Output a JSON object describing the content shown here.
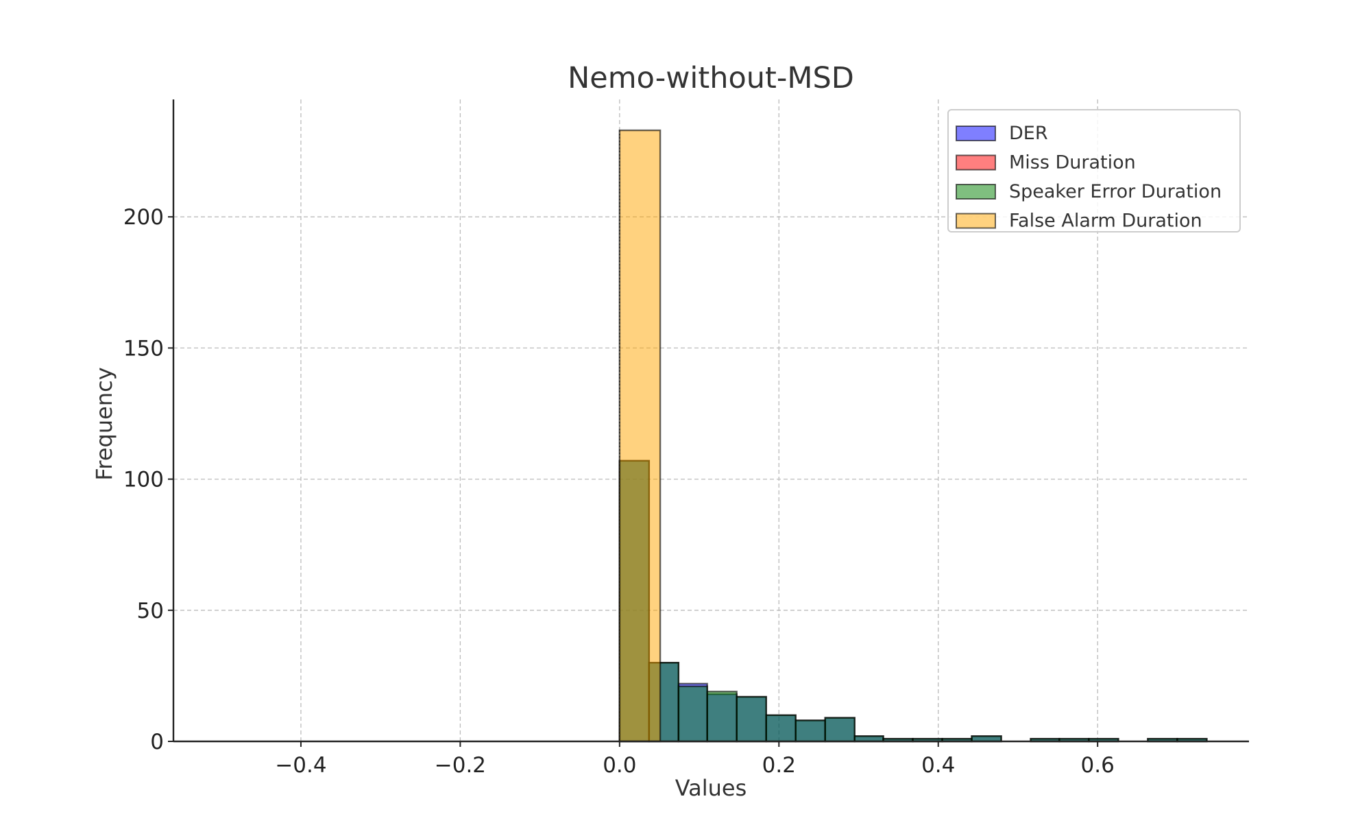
{
  "chart_data": {
    "type": "histogram",
    "title": "Nemo-without-MSD",
    "xlabel": "Values",
    "ylabel": "Frequency",
    "xlim": [
      -0.56,
      0.79
    ],
    "ylim": [
      0,
      233
    ],
    "xticks": [
      -0.4,
      -0.2,
      0.0,
      0.2,
      0.4,
      0.6
    ],
    "xtick_labels": [
      "−0.4",
      "−0.2",
      "0.0",
      "0.2",
      "0.4",
      "0.6"
    ],
    "yticks": [
      0,
      50,
      100,
      150,
      200
    ],
    "ytick_labels": [
      "0",
      "50",
      "100",
      "150",
      "200"
    ],
    "grid": true,
    "legend_position": "upper-right",
    "series": [
      {
        "name": "DER",
        "color": "#0000ff",
        "alpha": 0.5,
        "bins": [
          [
            0.0,
            0.037,
            107
          ],
          [
            0.037,
            0.074,
            30
          ],
          [
            0.074,
            0.11,
            22
          ],
          [
            0.11,
            0.147,
            18
          ],
          [
            0.147,
            0.184,
            17
          ],
          [
            0.184,
            0.221,
            10
          ],
          [
            0.221,
            0.258,
            8
          ],
          [
            0.258,
            0.295,
            9
          ],
          [
            0.295,
            0.331,
            2
          ],
          [
            0.331,
            0.368,
            1
          ],
          [
            0.368,
            0.405,
            1
          ],
          [
            0.405,
            0.442,
            1
          ],
          [
            0.442,
            0.479,
            2
          ],
          [
            0.516,
            0.552,
            1
          ],
          [
            0.552,
            0.589,
            1
          ],
          [
            0.589,
            0.626,
            1
          ],
          [
            0.663,
            0.7,
            1
          ],
          [
            0.7,
            0.737,
            1
          ]
        ]
      },
      {
        "name": "Miss Duration",
        "color": "#ff0000",
        "alpha": 0.5,
        "bins": [
          [
            0.0,
            0.0,
            233
          ]
        ]
      },
      {
        "name": "Speaker Error Duration",
        "color": "#008000",
        "alpha": 0.5,
        "bins": [
          [
            0.0,
            0.037,
            107
          ],
          [
            0.037,
            0.074,
            30
          ],
          [
            0.074,
            0.11,
            21
          ],
          [
            0.11,
            0.147,
            19
          ],
          [
            0.147,
            0.184,
            17
          ],
          [
            0.184,
            0.221,
            10
          ],
          [
            0.221,
            0.258,
            8
          ],
          [
            0.258,
            0.295,
            9
          ],
          [
            0.295,
            0.331,
            2
          ],
          [
            0.331,
            0.368,
            1
          ],
          [
            0.368,
            0.405,
            1
          ],
          [
            0.405,
            0.442,
            1
          ],
          [
            0.442,
            0.479,
            2
          ],
          [
            0.516,
            0.552,
            1
          ],
          [
            0.552,
            0.589,
            1
          ],
          [
            0.589,
            0.626,
            1
          ],
          [
            0.663,
            0.7,
            1
          ],
          [
            0.7,
            0.737,
            1
          ]
        ]
      },
      {
        "name": "False Alarm Duration",
        "color": "#ffa500",
        "alpha": 0.5,
        "bins": [
          [
            0.0,
            0.051,
            233
          ]
        ]
      }
    ]
  }
}
